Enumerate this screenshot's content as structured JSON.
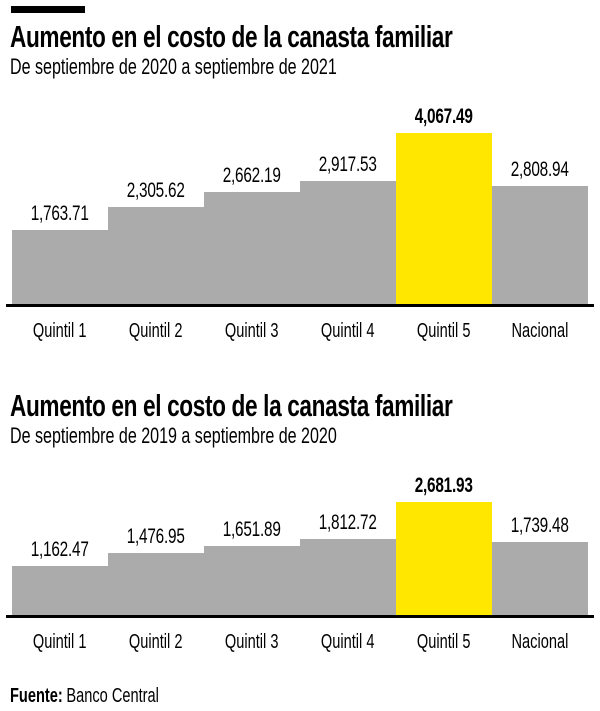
{
  "colors": {
    "bar": "#ababab",
    "highlight": "#ffe700",
    "axis": "#000000",
    "text": "#000000",
    "kicker": "#000000"
  },
  "footer": {
    "source_label": "Fuente:",
    "source_value": "Banco Central"
  },
  "chart_data": [
    {
      "type": "bar",
      "title": "Aumento en el costo de la canasta familiar",
      "subtitle": "De septiembre de 2020 a septiembre de 2021",
      "categories": [
        "Quintil 1",
        "Quintil 2",
        "Quintil 3",
        "Quintil 4",
        "Quintil 5",
        "Nacional"
      ],
      "values": [
        1763.71,
        2305.62,
        2662.19,
        2917.53,
        4067.49,
        2808.94
      ],
      "value_labels": [
        "1,763.71",
        "2,305.62",
        "2,662.19",
        "2,917.53",
        "4,067.49",
        "2,808.94"
      ],
      "highlight_index": 4,
      "xlabel": "",
      "ylabel": "",
      "ylim": [
        0,
        4300
      ],
      "grid": false,
      "legend": "none"
    },
    {
      "type": "bar",
      "title": "Aumento en el costo de la canasta familiar",
      "subtitle": "De septiembre de 2019 a septiembre de 2020",
      "categories": [
        "Quintil 1",
        "Quintil 2",
        "Quintil 3",
        "Quintil 4",
        "Quintil 5",
        "Nacional"
      ],
      "values": [
        1162.47,
        1476.95,
        1651.89,
        1812.72,
        2681.93,
        1739.48
      ],
      "value_labels": [
        "1,162.47",
        "1,476.95",
        "1,651.89",
        "1,812.72",
        "2,681.93",
        "1,739.48"
      ],
      "highlight_index": 4,
      "xlabel": "",
      "ylabel": "",
      "ylim": [
        0,
        2900
      ],
      "grid": false,
      "legend": "none"
    }
  ]
}
